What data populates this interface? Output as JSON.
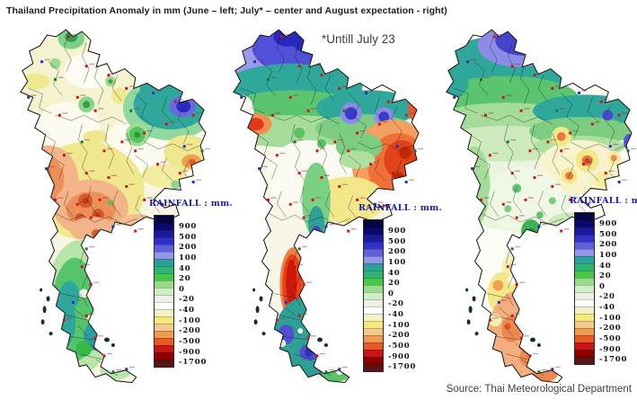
{
  "title": "Thailand Precipitation Anomaly in mm (June – left; July* – center and August expectation - right)",
  "annotation": "*Untill July 23",
  "source": "Source: Thai Meteorological Department",
  "legend": {
    "title": "RAINFALL : mm.",
    "title_color": "#1a18a8",
    "labels": [
      "900",
      "500",
      "200",
      "100",
      "40",
      "20",
      "0",
      "-20",
      "-40",
      "-100",
      "-200",
      "-500",
      "-900",
      "-1700"
    ],
    "band_colors": [
      "#050542",
      "#0a0a6e",
      "#1a1a9b",
      "#3030cd",
      "#6060dd",
      "#9494ea",
      "#2da09b",
      "#2fb478",
      "#46c846",
      "#96dc8c",
      "#ceeec4",
      "#efefe5",
      "#ffffff",
      "#f4f0c8",
      "#f4ea7c",
      "#f6ca8c",
      "#f09a50",
      "#e65a28",
      "#cd1414",
      "#8e0000",
      "#5a1414"
    ]
  }
}
